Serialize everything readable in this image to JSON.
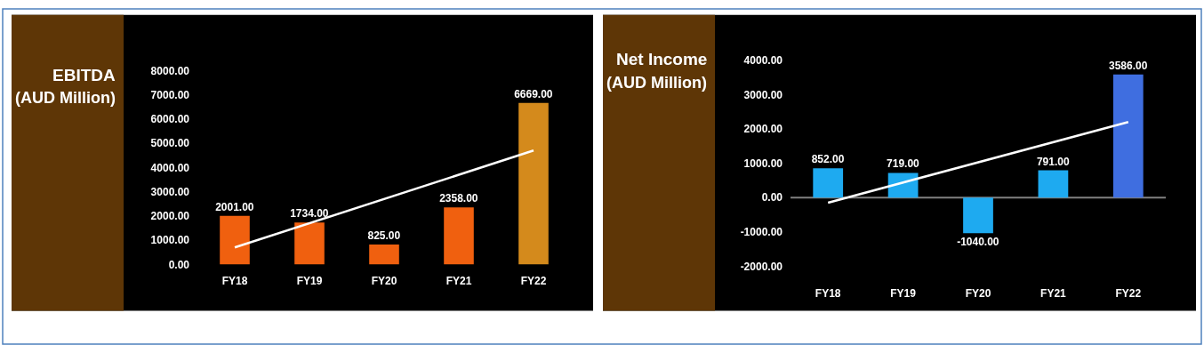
{
  "chart_data": [
    {
      "type": "bar",
      "title": "EBITDA",
      "subtitle": "(AUD Million)",
      "categories": [
        "FY18",
        "FY19",
        "FY20",
        "FY21",
        "FY22"
      ],
      "series": [
        {
          "colors": [
            "#f0600f",
            "#f0600f",
            "#f0600f",
            "#f0600f",
            "#d48a1c"
          ],
          "values": [
            2001,
            1734,
            825,
            2358,
            6669
          ],
          "value_labels": [
            "2001.00",
            "1734.00",
            "825.00",
            "2358.00",
            "6669.00"
          ]
        },
        {
          "type": "line",
          "color": "#ffffff",
          "x": [
            "FY18",
            "FY22"
          ],
          "values": [
            700,
            4700
          ]
        }
      ],
      "ylim": [
        0,
        8000
      ],
      "yticks": [
        {
          "value": 0,
          "label": "0.00"
        },
        {
          "value": 1000,
          "label": "1000.00"
        },
        {
          "value": 2000,
          "label": "2000.00"
        },
        {
          "value": 3000,
          "label": "3000.00"
        },
        {
          "value": 4000,
          "label": "4000.00"
        },
        {
          "value": 5000,
          "label": "5000.00"
        },
        {
          "value": 6000,
          "label": "6000.00"
        },
        {
          "value": 7000,
          "label": "7000.00"
        },
        {
          "value": 8000,
          "label": "8000.00"
        }
      ]
    },
    {
      "type": "bar",
      "title": "Net Income",
      "subtitle": "(AUD Million)",
      "categories": [
        "FY18",
        "FY19",
        "FY20",
        "FY21",
        "FY22"
      ],
      "series": [
        {
          "colors": [
            "#1eaaf0",
            "#1eaaf0",
            "#1eaaf0",
            "#1eaaf0",
            "#3f6ee0"
          ],
          "values": [
            852,
            719,
            -1040,
            791,
            3586
          ],
          "value_labels": [
            "852.00",
            "719.00",
            "-1040.00",
            "791.00",
            "3586.00"
          ]
        },
        {
          "type": "line",
          "color": "#ffffff",
          "x": [
            "FY18",
            "FY22"
          ],
          "values": [
            -150,
            2200
          ]
        }
      ],
      "ylim": [
        -2000,
        4000
      ],
      "yticks": [
        {
          "value": -2000,
          "label": "-2000.00"
        },
        {
          "value": -1000,
          "label": "-1000.00"
        },
        {
          "value": 0,
          "label": "0.00"
        },
        {
          "value": 1000,
          "label": "1000.00"
        },
        {
          "value": 2000,
          "label": "2000.00"
        },
        {
          "value": 3000,
          "label": "3000.00"
        },
        {
          "value": 4000,
          "label": "4000.00"
        }
      ],
      "ref_lines": [
        {
          "axis": "y",
          "value": 0,
          "color": "#808080"
        }
      ]
    }
  ]
}
